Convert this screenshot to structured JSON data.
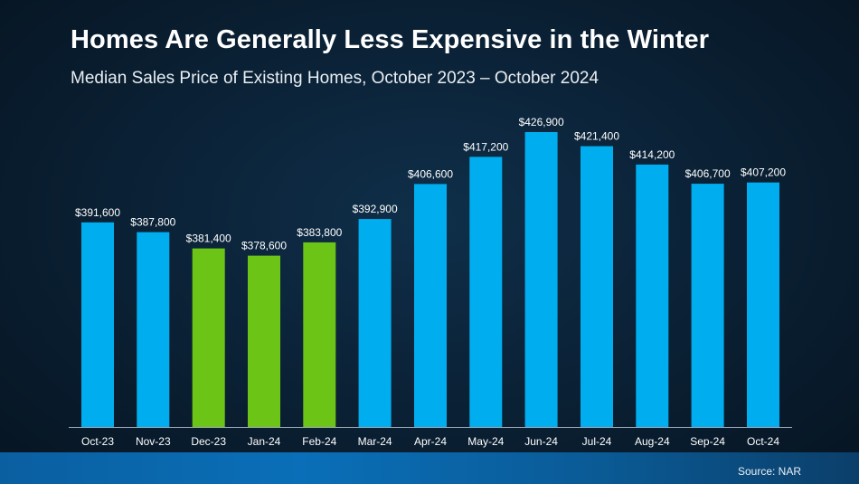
{
  "title": "Homes Are Generally Less Expensive in the Winter",
  "subtitle": "Median Sales Price of Existing Homes, October 2023 – October 2024",
  "source": "Source: NAR",
  "colors": {
    "default_bar": "#00aeef",
    "highlight_bar": "#6cc417",
    "axis": "#9aa6b2",
    "label_text": "#ffffff"
  },
  "chart_data": {
    "type": "bar",
    "title": "Homes Are Generally Less Expensive in the Winter",
    "subtitle": "Median Sales Price of Existing Homes, October 2023 – October 2024",
    "xlabel": "",
    "ylabel": "",
    "grid": false,
    "categories": [
      "Oct-23",
      "Nov-23",
      "Dec-23",
      "Jan-24",
      "Feb-24",
      "Mar-24",
      "Apr-24",
      "May-24",
      "Jun-24",
      "Jul-24",
      "Aug-24",
      "Sep-24",
      "Oct-24"
    ],
    "values": [
      391600,
      387800,
      381400,
      378600,
      383800,
      392900,
      406600,
      417200,
      426900,
      421400,
      414200,
      406700,
      407200
    ],
    "value_labels": [
      "$391,600",
      "$387,800",
      "$381,400",
      "$378,600",
      "$383,800",
      "$392,900",
      "$406,600",
      "$417,200",
      "$426,900",
      "$421,400",
      "$414,200",
      "$406,700",
      "$407,200"
    ],
    "highlighted": [
      "Dec-23",
      "Jan-24",
      "Feb-24"
    ]
  }
}
